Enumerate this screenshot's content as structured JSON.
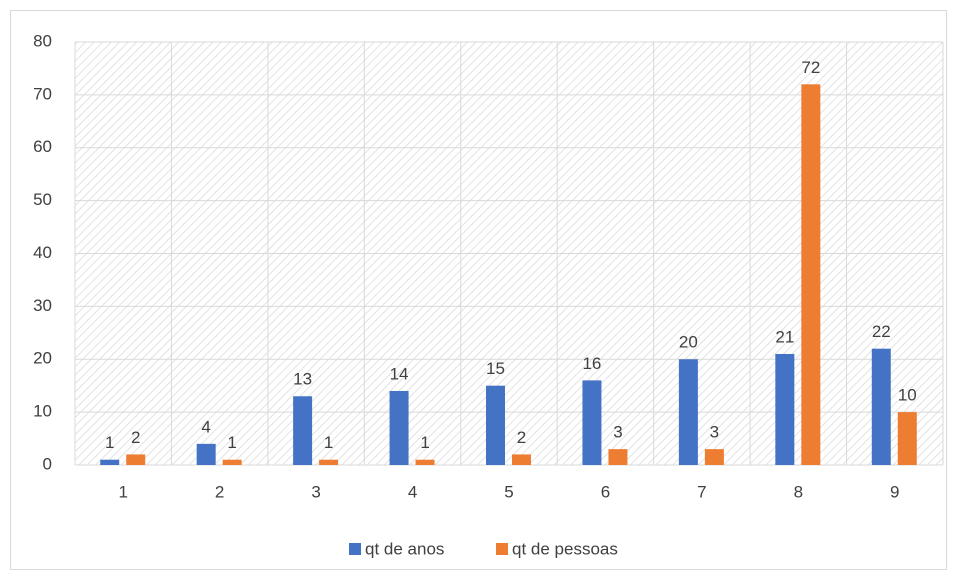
{
  "chart_data": {
    "type": "bar",
    "categories": [
      "1",
      "2",
      "3",
      "4",
      "5",
      "6",
      "7",
      "8",
      "9"
    ],
    "series": [
      {
        "name": "qt de anos",
        "color": "#4472c4",
        "values": [
          1,
          4,
          13,
          14,
          15,
          16,
          20,
          21,
          22
        ]
      },
      {
        "name": "qt de pessoas",
        "color": "#ed7d31",
        "values": [
          2,
          1,
          1,
          1,
          2,
          3,
          3,
          72,
          10
        ]
      }
    ],
    "ylim": [
      0,
      80
    ],
    "yticks": [
      0,
      10,
      20,
      30,
      40,
      50,
      60,
      70,
      80
    ],
    "grid": true,
    "legend": "bottom"
  }
}
